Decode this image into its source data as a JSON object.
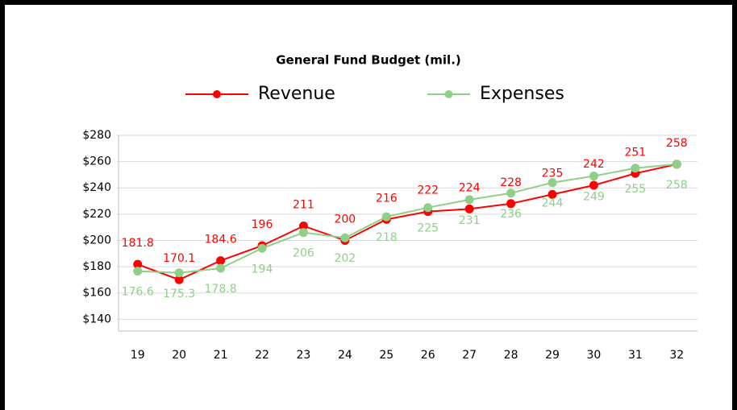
{
  "chart_data": {
    "type": "line",
    "title": "General Fund Budget (mil.)",
    "categories": [
      "19",
      "20",
      "21",
      "22",
      "23",
      "24",
      "25",
      "26",
      "27",
      "28",
      "29",
      "30",
      "31",
      "32"
    ],
    "series": [
      {
        "name": "Revenue",
        "color": "#ff0000",
        "values": [
          181.8,
          170.1,
          184.6,
          196,
          211,
          200,
          216,
          222,
          224,
          228,
          235,
          242,
          251,
          258
        ]
      },
      {
        "name": "Expenses",
        "color": "#8fcf88",
        "values": [
          176.6,
          175.3,
          178.8,
          194,
          206,
          202,
          218,
          225,
          231,
          236,
          244,
          249,
          255,
          258
        ]
      }
    ],
    "ylim": [
      131,
      280
    ],
    "yticks": [
      {
        "value": 140,
        "label": "$140"
      },
      {
        "value": 160,
        "label": "$160"
      },
      {
        "value": 180,
        "label": "$180"
      },
      {
        "value": 200,
        "label": "$200"
      },
      {
        "value": 220,
        "label": "$220"
      },
      {
        "value": 240,
        "label": "$240"
      },
      {
        "value": 260,
        "label": "$260"
      },
      {
        "value": 280,
        "label": "$280"
      }
    ],
    "grid": true,
    "legend": "top"
  }
}
